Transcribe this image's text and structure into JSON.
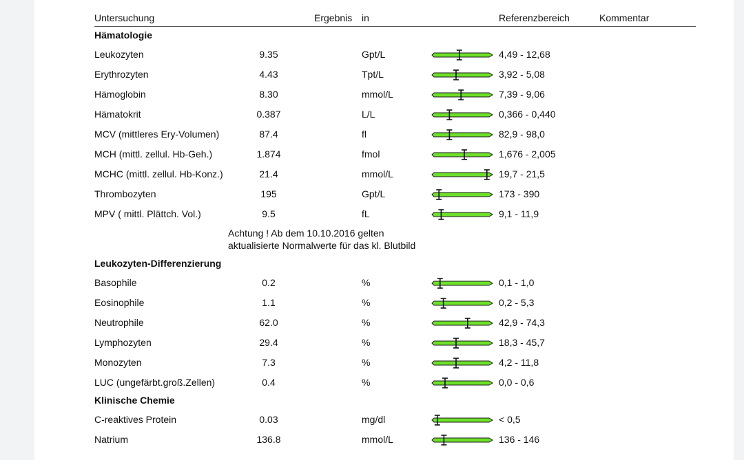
{
  "header": {
    "col_test": "Untersuchung",
    "col_result": "Ergebnis",
    "col_unit": "in",
    "col_ref": "Referenzbereich",
    "col_comment": "Kommentar"
  },
  "sections": {
    "haematology": "Hämatologie",
    "differential": "Leukozyten-Differenzierung",
    "chemistry": "Klinische Chemie"
  },
  "note": {
    "line1": "Achtung ! Ab dem 10.10.2016 gelten",
    "line2": "aktualisierte Normalwerte für das kl. Blutbild"
  },
  "colors": {
    "bar_fill": "#6ee02a",
    "bar_stroke": "#1a1a1a",
    "marker": "#111111"
  },
  "rows": [
    {
      "name": "Leukozyten",
      "value": "9.35",
      "unit": "Gpt/L",
      "ref": "4,49 - 12,68",
      "marker": 0.46
    },
    {
      "name": "Erythrozyten",
      "value": "4.43",
      "unit": "Tpt/L",
      "ref": "3,92 - 5,08",
      "marker": 0.4
    },
    {
      "name": "Hämoglobin",
      "value": "8.30",
      "unit": "mmol/L",
      "ref": "7,39 - 9,06",
      "marker": 0.49
    },
    {
      "name": "Hämatokrit",
      "value": "0.387",
      "unit": "L/L",
      "ref": "0,366 - 0,440",
      "marker": 0.28
    },
    {
      "name": "MCV (mittleres Ery-Volumen)",
      "value": "87.4",
      "unit": "fl",
      "ref": "82,9 - 98,0",
      "marker": 0.28
    },
    {
      "name": "MCH (mittl. zellul. Hb-Geh.)",
      "value": "1.874",
      "unit": "fmol",
      "ref": "1,676 - 2,005",
      "marker": 0.55
    },
    {
      "name": "MCHC (mittl. zellul. Hb-Konz.)",
      "value": "21.4",
      "unit": "mmol/L",
      "ref": "19,7 - 21,5",
      "marker": 0.96
    },
    {
      "name": "Thrombozyten",
      "value": "195",
      "unit": "Gpt/L",
      "ref": "173 - 390",
      "marker": 0.09
    },
    {
      "name": "MPV ( mittl. Plättch. Vol.)",
      "value": "9.5",
      "unit": "fL",
      "ref": "9,1 - 11,9",
      "marker": 0.13
    },
    {
      "name": "Basophile",
      "value": "0.2",
      "unit": "%",
      "ref": "0,1 - 1,0",
      "marker": 0.11
    },
    {
      "name": "Eosinophile",
      "value": "1.1",
      "unit": "%",
      "ref": "0,2 - 5,3",
      "marker": 0.17
    },
    {
      "name": "Neutrophile",
      "value": "62.0",
      "unit": "%",
      "ref": "42,9 - 74,3",
      "marker": 0.61
    },
    {
      "name": "Lymphozyten",
      "value": "29.4",
      "unit": "%",
      "ref": "18,3 - 45,7",
      "marker": 0.4
    },
    {
      "name": "Monozyten",
      "value": "7.3",
      "unit": "%",
      "ref": "4,2 - 11,8",
      "marker": 0.4
    },
    {
      "name": "LUC (ungefärbt.groß.Zellen)",
      "value": "0.4",
      "unit": "%",
      "ref": "0,0 - 0,6",
      "marker": 0.2
    },
    {
      "name": "C-reaktives Protein",
      "value": "0.03",
      "unit": "mg/dl",
      "ref": "< 0,5",
      "marker": 0.06
    },
    {
      "name": "Natrium",
      "value": "136.8",
      "unit": "mmol/L",
      "ref": "136 - 146",
      "marker": 0.18
    }
  ]
}
